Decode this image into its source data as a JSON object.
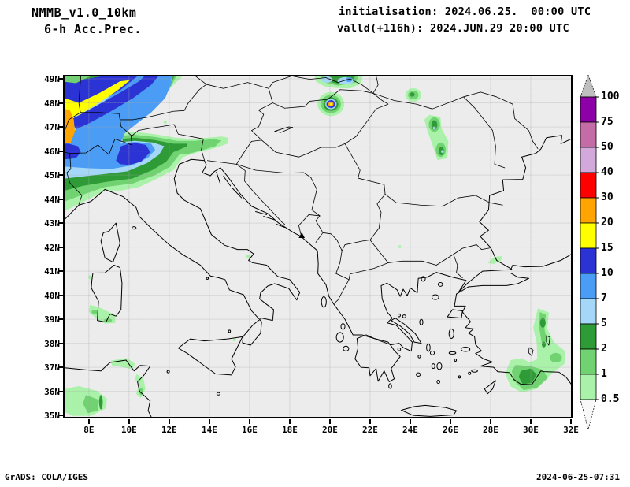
{
  "header": {
    "model": "NMMB_v1.0_10km",
    "field": "6-h Acc.Prec.",
    "init": "initialisation: 2024.06.25.  00:00 UTC",
    "valid": "valld(+116h): 2024.JUN.29 20:00 UTC"
  },
  "footer": {
    "left": "GrADS: COLA/IGES",
    "right": "2024-06-25-07:31"
  },
  "axes": {
    "lat_labels": [
      "49N",
      "48N",
      "47N",
      "46N",
      "45N",
      "44N",
      "43N",
      "42N",
      "41N",
      "40N",
      "39N",
      "38N",
      "37N",
      "36N",
      "35N"
    ],
    "lon_labels": [
      "8E",
      "10E",
      "12E",
      "14E",
      "16E",
      "18E",
      "20E",
      "22E",
      "24E",
      "26E",
      "28E",
      "30E",
      "32E"
    ]
  },
  "colorbar": {
    "labels": [
      "100",
      "75",
      "50",
      "40",
      "30",
      "20",
      "15",
      "10",
      "7",
      "5",
      "2",
      "1",
      "0.5"
    ],
    "colors": [
      "#8d00a8",
      "#c46ca6",
      "#d2a9da",
      "#ff0000",
      "#ffa400",
      "#ffff00",
      "#2c33d4",
      "#4a9cf4",
      "#a5d8f8",
      "#2e9b36",
      "#70d270",
      "#aaf2aa"
    ],
    "above_color": "#bfbfbf",
    "below_color": "#f8f8f8"
  },
  "palette": {
    "lg": "#aaf2aa",
    "mg": "#70d270",
    "dg": "#2e9b36",
    "lb": "#a5d8f8",
    "mb": "#4a9cf4",
    "db": "#2c33d4",
    "yl": "#ffff00",
    "or": "#ffa400",
    "map_bg": "#ececec",
    "line": "#000000",
    "grid": "#a8a8a8"
  }
}
